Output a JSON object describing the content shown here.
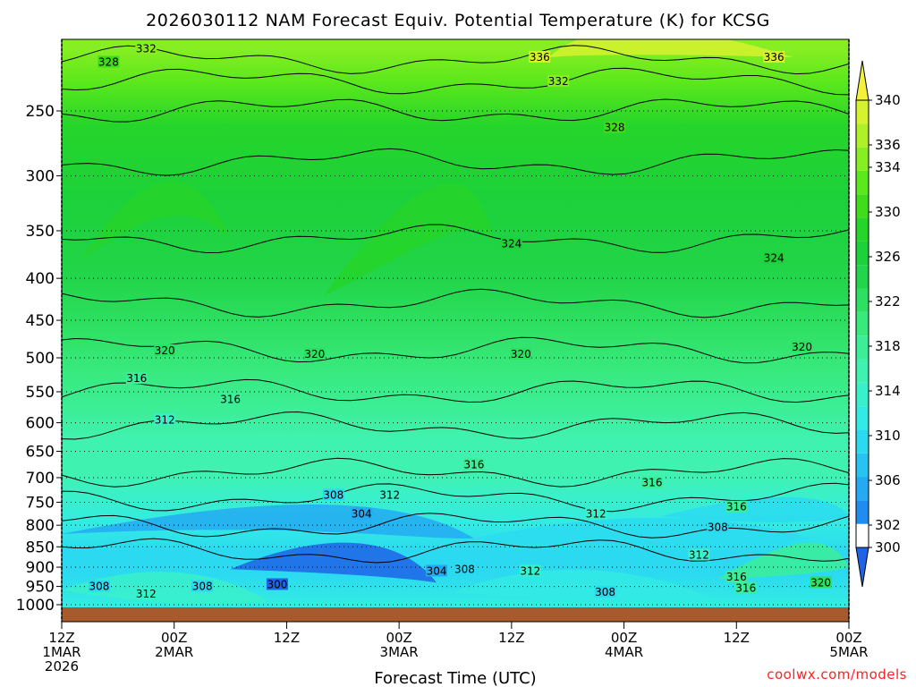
{
  "chart_data": {
    "type": "heatmap",
    "title": "2026030112 NAM Forecast Equiv. Potential Temperature (K) for KCSG",
    "xlabel": "Forecast Time (UTC)",
    "ylabel": "",
    "y_scale": "log",
    "y_inverted": true,
    "ylim": [
      1000,
      200
    ],
    "yticks": [
      250,
      300,
      350,
      400,
      450,
      500,
      550,
      600,
      650,
      700,
      750,
      800,
      850,
      900,
      950,
      1000
    ],
    "xlim": [
      "2026-03-01T12:00Z",
      "2026-03-05T00:00Z"
    ],
    "xticks": [
      {
        "time": "2026-03-01T12:00Z",
        "lines": [
          "12Z",
          "1MAR",
          "2026"
        ]
      },
      {
        "time": "2026-03-02T00:00Z",
        "lines": [
          "00Z",
          "2MAR"
        ]
      },
      {
        "time": "2026-03-02T12:00Z",
        "lines": [
          "12Z"
        ]
      },
      {
        "time": "2026-03-03T00:00Z",
        "lines": [
          "00Z",
          "3MAR"
        ]
      },
      {
        "time": "2026-03-03T12:00Z",
        "lines": [
          "12Z"
        ]
      },
      {
        "time": "2026-03-04T00:00Z",
        "lines": [
          "00Z",
          "4MAR"
        ]
      },
      {
        "time": "2026-03-04T12:00Z",
        "lines": [
          "12Z"
        ]
      },
      {
        "time": "2026-03-05T00:00Z",
        "lines": [
          "00Z",
          "5MAR"
        ]
      }
    ],
    "grid": "dotted horizontal at y ticks",
    "colorbar": {
      "units": "K",
      "levels": [
        300,
        302,
        304,
        306,
        308,
        310,
        312,
        314,
        316,
        318,
        320,
        322,
        324,
        326,
        328,
        330,
        332,
        334,
        336,
        338,
        340
      ],
      "tick_labels": [
        "300",
        "302",
        "306",
        "310",
        "314",
        "318",
        "322",
        "326",
        "330",
        "334",
        "336",
        "340"
      ],
      "colors": [
        "#1e64e6",
        "#1f8cf0",
        "#23aaf2",
        "#27c4f2",
        "#2bdaf0",
        "#33eae4",
        "#3af0ca",
        "#40f2b0",
        "#3cee98",
        "#38ea7e",
        "#2ee062",
        "#22d54a",
        "#1cd13a",
        "#26d52a",
        "#40dc1c",
        "#5ce81c",
        "#86ee22",
        "#b0f028",
        "#d6f22e",
        "#f2f23a"
      ],
      "extend": "both"
    },
    "contour_labels": [
      {
        "value": 332,
        "time": "2026-03-01T21:00Z",
        "pressure": 210
      },
      {
        "value": 328,
        "time": "2026-03-01T17:00Z",
        "pressure": 218
      },
      {
        "value": 336,
        "time": "2026-03-03T15:00Z",
        "pressure": 215
      },
      {
        "value": 336,
        "time": "2026-03-04T16:00Z",
        "pressure": 215
      },
      {
        "value": 332,
        "time": "2026-03-03T17:00Z",
        "pressure": 230
      },
      {
        "value": 328,
        "time": "2026-03-03T23:00Z",
        "pressure": 262
      },
      {
        "value": 324,
        "time": "2026-03-03T12:00Z",
        "pressure": 363
      },
      {
        "value": 324,
        "time": "2026-03-04T16:00Z",
        "pressure": 378
      },
      {
        "value": 320,
        "time": "2026-03-01T23:00Z",
        "pressure": 490
      },
      {
        "value": 320,
        "time": "2026-03-02T15:00Z",
        "pressure": 495
      },
      {
        "value": 320,
        "time": "2026-03-03T13:00Z",
        "pressure": 495
      },
      {
        "value": 320,
        "time": "2026-03-04T19:00Z",
        "pressure": 485
      },
      {
        "value": 316,
        "time": "2026-03-01T20:00Z",
        "pressure": 530
      },
      {
        "value": 316,
        "time": "2026-03-02T06:00Z",
        "pressure": 562
      },
      {
        "value": 312,
        "time": "2026-03-01T23:00Z",
        "pressure": 595
      },
      {
        "value": 316,
        "time": "2026-03-03T08:00Z",
        "pressure": 675
      },
      {
        "value": 316,
        "time": "2026-03-04T03:00Z",
        "pressure": 710
      },
      {
        "value": 308,
        "time": "2026-03-02T17:00Z",
        "pressure": 735
      },
      {
        "value": 312,
        "time": "2026-03-02T23:00Z",
        "pressure": 735
      },
      {
        "value": 304,
        "time": "2026-03-02T20:00Z",
        "pressure": 775
      },
      {
        "value": 312,
        "time": "2026-03-03T21:00Z",
        "pressure": 775
      },
      {
        "value": 316,
        "time": "2026-03-04T12:00Z",
        "pressure": 760
      },
      {
        "value": 308,
        "time": "2026-03-04T10:00Z",
        "pressure": 805
      },
      {
        "value": 312,
        "time": "2026-03-04T08:00Z",
        "pressure": 870
      },
      {
        "value": 304,
        "time": "2026-03-03T04:00Z",
        "pressure": 910
      },
      {
        "value": 308,
        "time": "2026-03-03T07:00Z",
        "pressure": 905
      },
      {
        "value": 312,
        "time": "2026-03-03T14:00Z",
        "pressure": 910
      },
      {
        "value": 300,
        "time": "2026-03-02T11:00Z",
        "pressure": 945
      },
      {
        "value": 308,
        "time": "2026-03-01T16:00Z",
        "pressure": 950
      },
      {
        "value": 312,
        "time": "2026-03-01T21:00Z",
        "pressure": 970
      },
      {
        "value": 308,
        "time": "2026-03-02T03:00Z",
        "pressure": 950
      },
      {
        "value": 308,
        "time": "2026-03-03T22:00Z",
        "pressure": 965
      },
      {
        "value": 316,
        "time": "2026-03-04T12:00Z",
        "pressure": 925
      },
      {
        "value": 316,
        "time": "2026-03-04T13:00Z",
        "pressure": 955
      },
      {
        "value": 320,
        "time": "2026-03-04T21:00Z",
        "pressure": 940
      }
    ]
  },
  "credit": "coolwx.com/models"
}
